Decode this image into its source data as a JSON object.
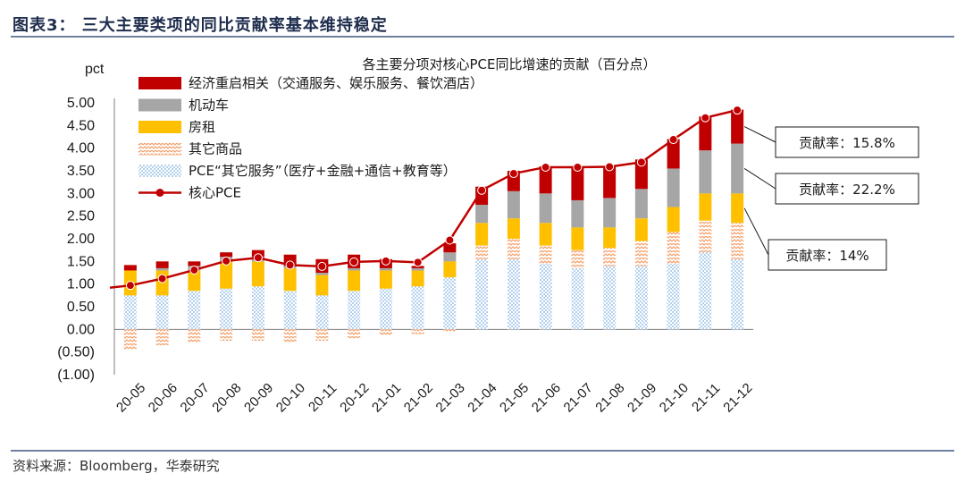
{
  "header": {
    "title": "图表3：  三大主要类项的同比贡献率基本维持稳定"
  },
  "footer": {
    "source": "资料来源：Bloomberg，华泰研究"
  },
  "colors": {
    "reopen": "#c00000",
    "autos": "#a6a6a6",
    "rent": "#ffc000",
    "other_goods": "#f4b183",
    "other_services": "#9dc3e6",
    "core": "#c00000"
  },
  "chart_data": {
    "type": "bar",
    "stacked": true,
    "title": "各主要分项对核心PCE同比增速的贡献（百分点）",
    "ylabel": "pct",
    "xlabel": "",
    "ylim": [
      -1.0,
      5.0
    ],
    "yticks": [
      "(1.00)",
      "(0.50)",
      "0.00",
      "0.50",
      "1.00",
      "1.50",
      "2.00",
      "2.50",
      "3.00",
      "3.50",
      "4.00",
      "4.50",
      "5.00"
    ],
    "categories": [
      "20-05",
      "20-06",
      "20-07",
      "20-08",
      "20-09",
      "20-10",
      "20-11",
      "20-12",
      "21-01",
      "21-02",
      "21-03",
      "21-04",
      "21-05",
      "21-06",
      "21-07",
      "21-08",
      "21-09",
      "21-10",
      "21-11",
      "21-12"
    ],
    "series": [
      {
        "name": "PCE“其它服务”（医疗+金融+通信+教育等）",
        "key": "other_services",
        "kind": "bar",
        "values": [
          0.75,
          0.75,
          0.85,
          0.9,
          0.95,
          0.85,
          0.75,
          0.85,
          0.9,
          0.95,
          1.15,
          1.55,
          1.55,
          1.45,
          1.35,
          1.4,
          1.4,
          1.45,
          1.7,
          1.55
        ]
      },
      {
        "name": "其它商品",
        "key": "other_goods",
        "kind": "bar",
        "values": [
          -0.45,
          -0.35,
          -0.3,
          -0.25,
          -0.25,
          -0.3,
          -0.25,
          -0.2,
          -0.15,
          -0.1,
          -0.05,
          0.3,
          0.45,
          0.4,
          0.4,
          0.4,
          0.55,
          0.7,
          0.7,
          0.8
        ]
      },
      {
        "name": "房租",
        "key": "rent",
        "kind": "bar",
        "values": [
          0.55,
          0.55,
          0.45,
          0.6,
          0.55,
          0.5,
          0.45,
          0.45,
          0.4,
          0.35,
          0.35,
          0.5,
          0.45,
          0.5,
          0.5,
          0.45,
          0.5,
          0.55,
          0.6,
          0.65
        ]
      },
      {
        "name": "机动车",
        "key": "autos",
        "kind": "bar",
        "values": [
          0.0,
          0.05,
          0.1,
          0.1,
          0.1,
          0.05,
          0.05,
          0.05,
          0.05,
          0.05,
          0.2,
          0.4,
          0.6,
          0.65,
          0.6,
          0.65,
          0.65,
          0.85,
          0.95,
          1.1
        ]
      },
      {
        "name": "经济重启相关（交通服务、娱乐服务、餐饮酒店）",
        "key": "reopen",
        "kind": "bar",
        "values": [
          0.12,
          0.15,
          0.1,
          0.1,
          0.15,
          0.25,
          0.3,
          0.3,
          0.2,
          0.05,
          0.2,
          0.4,
          0.45,
          0.6,
          0.75,
          0.7,
          0.65,
          0.65,
          0.75,
          0.75
        ]
      },
      {
        "name": "核心PCE",
        "key": "core",
        "kind": "line",
        "values": [
          0.97,
          1.12,
          1.31,
          1.51,
          1.58,
          1.42,
          1.39,
          1.49,
          1.51,
          1.48,
          1.97,
          3.07,
          3.44,
          3.58,
          3.58,
          3.59,
          3.69,
          4.19,
          4.67,
          4.84
        ]
      }
    ],
    "legend": {
      "position": "top-left"
    },
    "annotations": [
      {
        "text": "贡献率：15.8%",
        "series": "reopen",
        "category": "21-12"
      },
      {
        "text": "贡献率：22.2%",
        "series": "autos",
        "category": "21-12"
      },
      {
        "text": "贡献率：14%",
        "series": "rent",
        "category": "21-12"
      }
    ]
  }
}
